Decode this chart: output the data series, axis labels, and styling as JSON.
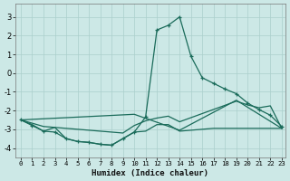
{
  "xlabel": "Humidex (Indice chaleur)",
  "bg_color": "#cce8e6",
  "grid_color": "#aacfcc",
  "line_color": "#1a6b5a",
  "xlim_min": -0.5,
  "xlim_max": 23.3,
  "ylim_min": -4.5,
  "ylim_max": 3.7,
  "xticks": [
    0,
    1,
    2,
    3,
    4,
    5,
    6,
    7,
    8,
    9,
    10,
    11,
    12,
    13,
    14,
    15,
    16,
    17,
    18,
    19,
    20,
    21,
    22,
    23
  ],
  "yticks": [
    -4,
    -3,
    -2,
    -1,
    0,
    1,
    2,
    3
  ],
  "line1_x": [
    0,
    1,
    2,
    3,
    4,
    5,
    6,
    7,
    8,
    9,
    10,
    11,
    12,
    13,
    14,
    15,
    16,
    17,
    18,
    19,
    20,
    21,
    22,
    23
  ],
  "line1_y": [
    -2.5,
    -2.8,
    -3.1,
    -3.15,
    -3.5,
    -3.65,
    -3.7,
    -3.8,
    -3.85,
    -3.5,
    -3.15,
    -2.35,
    2.3,
    2.55,
    3.0,
    0.9,
    -0.25,
    -0.55,
    -0.85,
    -1.1,
    -1.6,
    -1.95,
    -2.25,
    -2.85
  ],
  "line2_x": [
    0,
    1,
    2,
    3,
    4,
    5,
    6,
    7,
    8,
    9,
    10,
    11,
    12,
    13,
    14,
    15,
    16,
    17,
    18,
    19,
    20,
    21,
    22,
    23
  ],
  "line2_y": [
    -2.5,
    -2.75,
    -3.1,
    -2.9,
    -3.5,
    -3.65,
    -3.7,
    -3.8,
    -3.85,
    -3.5,
    -3.15,
    -3.1,
    -2.75,
    -2.75,
    -3.1,
    -3.05,
    -3.0,
    -2.95,
    -2.95,
    -2.95,
    -2.95,
    -2.95,
    -2.95,
    -2.95
  ],
  "line3_x": [
    0,
    2,
    3,
    9,
    10,
    11,
    12,
    13,
    14,
    19,
    20,
    21,
    22,
    23
  ],
  "line3_y": [
    -2.5,
    -2.85,
    -2.9,
    -3.2,
    -2.8,
    -2.55,
    -2.4,
    -2.3,
    -2.6,
    -1.5,
    -1.7,
    -1.85,
    -1.75,
    -2.95
  ],
  "line4_x": [
    0,
    10,
    14,
    19,
    23
  ],
  "line4_y": [
    -2.5,
    -2.2,
    -3.05,
    -1.45,
    -2.95
  ]
}
